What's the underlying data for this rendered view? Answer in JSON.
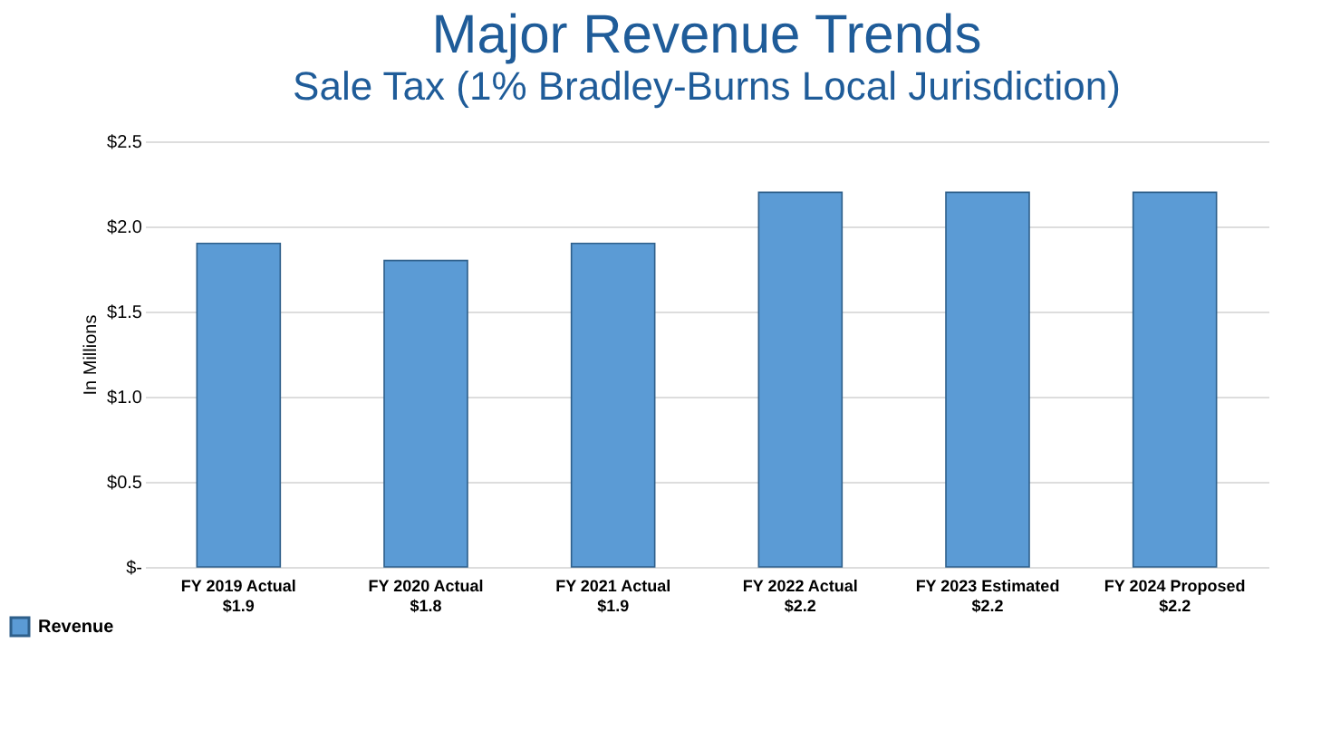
{
  "chart_data": {
    "type": "bar",
    "title": "Major Revenue Trends",
    "subtitle": "Sale Tax (1% Bradley-Burns Local Jurisdiction)",
    "ylabel": "In Millions",
    "categories": [
      "FY 2019 Actual",
      "FY 2020 Actual",
      "FY 2021 Actual",
      "FY 2022 Actual",
      "FY 2023 Estimated",
      "FY 2024 Proposed"
    ],
    "series": [
      {
        "name": "Revenue",
        "color": "#5b9bd5",
        "values": [
          1.9,
          1.8,
          1.9,
          2.2,
          2.2,
          2.2
        ],
        "value_labels": [
          "$1.9",
          "$1.8",
          "$1.9",
          "$2.2",
          "$2.2",
          "$2.2"
        ]
      }
    ],
    "ylim": [
      0,
      2.5
    ],
    "yticks": [
      {
        "value": 0,
        "label": "$-"
      },
      {
        "value": 0.5,
        "label": "$0.5"
      },
      {
        "value": 1,
        "label": "$1.0"
      },
      {
        "value": 1.5,
        "label": "$1.5"
      },
      {
        "value": 2,
        "label": "$2.0"
      },
      {
        "value": 2.5,
        "label": "$2.5"
      }
    ],
    "grid": "y",
    "legend": "bottom left"
  }
}
